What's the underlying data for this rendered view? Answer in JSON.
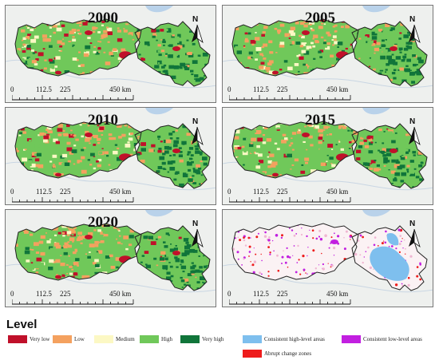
{
  "panels": [
    {
      "id": "p2000",
      "title": "2000",
      "mode": "level"
    },
    {
      "id": "p2005",
      "title": "2005",
      "mode": "level"
    },
    {
      "id": "p2010",
      "title": "2010",
      "mode": "level"
    },
    {
      "id": "p2015",
      "title": "2015",
      "mode": "level"
    },
    {
      "id": "p2020",
      "title": "2020",
      "mode": "level"
    },
    {
      "id": "pchange",
      "title": "",
      "mode": "change"
    }
  ],
  "north_arrow": {
    "letter": "N"
  },
  "scale_bar": {
    "ticks": [
      "0",
      "112.5",
      "225",
      "450 km"
    ]
  },
  "legend": {
    "title": "Level",
    "items": [
      {
        "label": "Very low",
        "color": "#c0102a"
      },
      {
        "label": "Low",
        "color": "#f4a15f"
      },
      {
        "label": "Medium",
        "color": "#fcf8c4"
      },
      {
        "label": "High",
        "color": "#70c85a"
      },
      {
        "label": "Very high",
        "color": "#10753a"
      },
      {
        "label": "Consistent high-level areas",
        "color": "#7ebfee"
      },
      {
        "label": "Consistent low-level areas",
        "color": "#c21fe0"
      },
      {
        "label": "Abrupt change zones",
        "color": "#ee1c1c"
      }
    ]
  },
  "colors": {
    "background": "#eef0ee",
    "boundary": "#222222",
    "change_fill": "#fbf2f4"
  }
}
